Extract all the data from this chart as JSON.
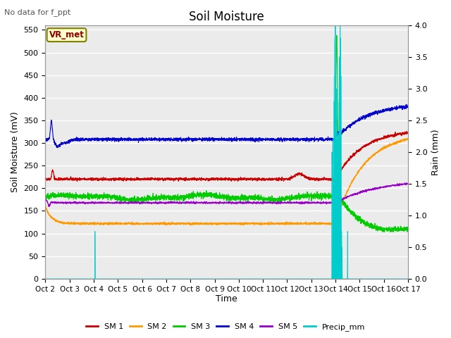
{
  "title": "Soil Moisture",
  "subtitle": "No data for f_ppt",
  "xlabel": "Time",
  "ylabel_left": "Soil Moisture (mV)",
  "ylabel_right": "Rain (mm)",
  "vr_met_label": "VR_met",
  "ylim_left": [
    0,
    560
  ],
  "ylim_right": [
    0,
    4.0
  ],
  "yticks_left": [
    0,
    50,
    100,
    150,
    200,
    250,
    300,
    350,
    400,
    450,
    500,
    550
  ],
  "yticks_right": [
    0.0,
    0.5,
    1.0,
    1.5,
    2.0,
    2.5,
    3.0,
    3.5,
    4.0
  ],
  "xtick_labels": [
    "Oct 2",
    "Oct 3",
    "Oct 4",
    "Oct 5",
    "Oct 6",
    "Oct 7",
    "Oct 8",
    "Oct 9",
    "Oct 10",
    "Oct 11",
    "Oct 12",
    "Oct 13",
    "Oct 14",
    "Oct 15",
    "Oct 16",
    "Oct 17"
  ],
  "colors": {
    "SM1": "#cc0000",
    "SM2": "#ff9900",
    "SM3": "#00cc00",
    "SM4": "#0000cc",
    "SM5": "#9900cc",
    "Precip": "#00cccc",
    "plot_bg": "#ebebeb"
  },
  "legend_labels": [
    "SM 1",
    "SM 2",
    "SM 3",
    "SM 4",
    "SM 5",
    "Precip_mm"
  ]
}
